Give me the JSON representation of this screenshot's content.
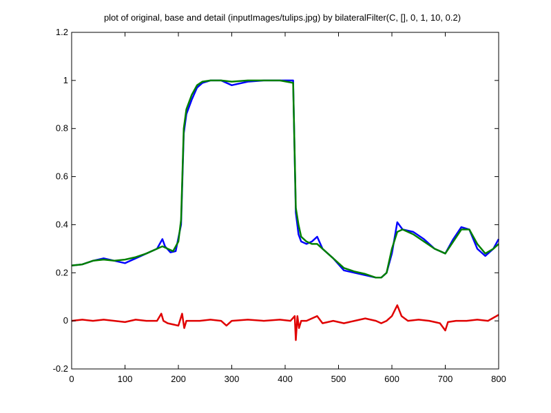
{
  "chart_data": {
    "type": "line",
    "title": "plot of original, base and detail (inputImages/tulips.jpg) by bilateralFilter(C, [], 0, 1, 10, 0.2)",
    "xlabel": "",
    "ylabel": "",
    "xlim": [
      0,
      800
    ],
    "ylim": [
      -0.2,
      1.2
    ],
    "grid": false,
    "x_ticks": [
      0,
      100,
      200,
      300,
      400,
      500,
      600,
      700,
      800
    ],
    "y_ticks": [
      -0.2,
      0,
      0.2,
      0.4,
      0.6,
      0.8,
      1,
      1.2
    ],
    "x_tick_labels": [
      "0",
      "100",
      "200",
      "300",
      "400",
      "500",
      "600",
      "700",
      "800"
    ],
    "y_tick_labels": [
      "-0.2",
      "0",
      "0.2",
      "0.4",
      "0.6",
      "0.8",
      "1",
      "1.2"
    ],
    "series": [
      {
        "color": "#0000ff",
        "x": [
          0,
          20,
          40,
          60,
          80,
          100,
          120,
          140,
          160,
          170,
          175,
          185,
          195,
          205,
          210,
          215,
          225,
          235,
          245,
          260,
          280,
          300,
          330,
          360,
          390,
          415,
          420,
          425,
          430,
          440,
          450,
          460,
          470,
          490,
          510,
          530,
          550,
          570,
          580,
          590,
          600,
          610,
          620,
          640,
          660,
          680,
          700,
          715,
          730,
          745,
          760,
          775,
          790,
          800
        ],
        "values": [
          0.23,
          0.235,
          0.25,
          0.26,
          0.25,
          0.24,
          0.26,
          0.28,
          0.3,
          0.34,
          0.31,
          0.285,
          0.29,
          0.4,
          0.78,
          0.86,
          0.92,
          0.97,
          0.99,
          1.0,
          1.0,
          0.98,
          0.995,
          1.0,
          1.0,
          1.0,
          0.45,
          0.36,
          0.33,
          0.32,
          0.33,
          0.35,
          0.3,
          0.26,
          0.21,
          0.2,
          0.19,
          0.18,
          0.18,
          0.2,
          0.28,
          0.41,
          0.38,
          0.37,
          0.34,
          0.3,
          0.28,
          0.34,
          0.39,
          0.38,
          0.3,
          0.27,
          0.3,
          0.34
        ]
      },
      {
        "color": "#008000",
        "x": [
          0,
          20,
          40,
          60,
          80,
          100,
          120,
          140,
          160,
          170,
          180,
          190,
          200,
          205,
          210,
          215,
          225,
          235,
          245,
          260,
          280,
          300,
          330,
          360,
          390,
          415,
          420,
          425,
          430,
          440,
          450,
          460,
          470,
          490,
          510,
          530,
          550,
          570,
          580,
          590,
          600,
          610,
          620,
          640,
          660,
          680,
          700,
          715,
          730,
          745,
          760,
          775,
          790,
          800
        ],
        "values": [
          0.23,
          0.235,
          0.25,
          0.255,
          0.25,
          0.255,
          0.265,
          0.28,
          0.3,
          0.31,
          0.3,
          0.29,
          0.33,
          0.42,
          0.8,
          0.88,
          0.94,
          0.98,
          0.995,
          1.0,
          1.0,
          0.995,
          1.0,
          1.0,
          1.0,
          0.99,
          0.47,
          0.4,
          0.35,
          0.33,
          0.32,
          0.32,
          0.3,
          0.26,
          0.22,
          0.205,
          0.195,
          0.18,
          0.18,
          0.2,
          0.3,
          0.37,
          0.38,
          0.36,
          0.33,
          0.3,
          0.28,
          0.33,
          0.38,
          0.38,
          0.32,
          0.28,
          0.3,
          0.32
        ]
      },
      {
        "color": "#e00000",
        "x": [
          0,
          20,
          40,
          60,
          80,
          100,
          120,
          140,
          160,
          168,
          172,
          180,
          200,
          207,
          211,
          215,
          225,
          240,
          260,
          280,
          290,
          300,
          330,
          360,
          390,
          410,
          418,
          420,
          423,
          426,
          430,
          440,
          460,
          470,
          490,
          510,
          530,
          550,
          570,
          580,
          590,
          600,
          610,
          618,
          630,
          650,
          670,
          690,
          700,
          705,
          720,
          740,
          760,
          780,
          800
        ],
        "values": [
          0.0,
          0.005,
          0.0,
          0.005,
          0.0,
          -0.005,
          0.005,
          0.0,
          0.0,
          0.03,
          0.0,
          -0.01,
          -0.02,
          0.03,
          -0.03,
          0.0,
          0.0,
          0.0,
          0.005,
          0.0,
          -0.02,
          0.0,
          0.005,
          0.0,
          0.005,
          0.0,
          0.02,
          -0.08,
          0.02,
          -0.03,
          0.0,
          0.0,
          0.02,
          -0.01,
          0.0,
          -0.01,
          0.0,
          0.01,
          0.0,
          -0.01,
          0.0,
          0.02,
          0.065,
          0.02,
          0.0,
          0.005,
          0.0,
          -0.01,
          -0.04,
          -0.005,
          0.0,
          0.0,
          0.005,
          0.0,
          0.025
        ]
      }
    ]
  }
}
